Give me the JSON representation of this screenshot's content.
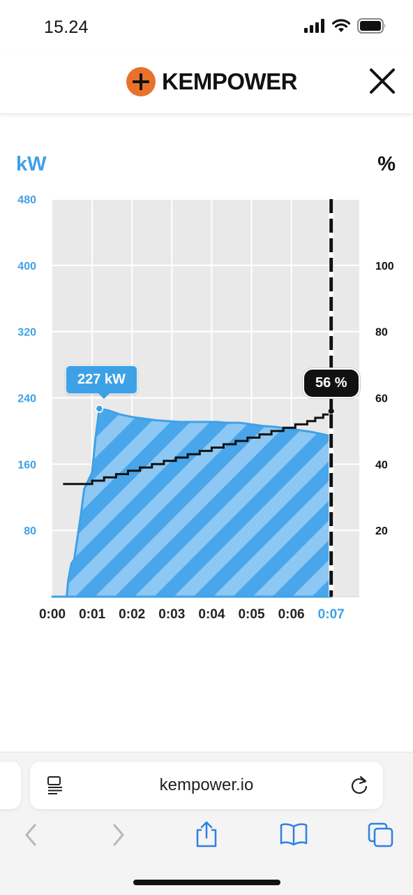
{
  "status_bar": {
    "time": "15.24",
    "icons": [
      "signal-icon",
      "wifi-icon",
      "battery-icon"
    ]
  },
  "header": {
    "brand": "KEMPOWER",
    "logo_icon": "kempower-plus-logo",
    "close_icon": "close-icon"
  },
  "chart": {
    "left_unit": "kW",
    "right_unit": "%",
    "tooltip_power": "227 kW",
    "tooltip_soc": "56 %"
  },
  "chart_data": {
    "type": "area",
    "x_labels": [
      "0:00",
      "0:01",
      "0:02",
      "0:03",
      "0:04",
      "0:05",
      "0:06",
      "0:07"
    ],
    "x_highlight": "0:07",
    "y_left_ticks": [
      "480",
      "400",
      "320",
      "240",
      "160",
      "80"
    ],
    "y_left_range": [
      0,
      480
    ],
    "y_right_ticks": [
      "100",
      "80",
      "60",
      "40",
      "20"
    ],
    "y_right_range": [
      0,
      120
    ],
    "grid": true,
    "colors": {
      "power": "#3ea1e6",
      "soc": "#111111",
      "left_axis": "#3ea1e6"
    },
    "series": [
      {
        "name": "kW",
        "unit": "kW",
        "points": [
          [
            0.0,
            0
          ],
          [
            0.36,
            0
          ],
          [
            0.4,
            20
          ],
          [
            0.48,
            40
          ],
          [
            0.55,
            45
          ],
          [
            0.72,
            100
          ],
          [
            0.8,
            130
          ],
          [
            1.0,
            150
          ],
          [
            1.08,
            190
          ],
          [
            1.18,
            227
          ],
          [
            1.4,
            225
          ],
          [
            1.7,
            220
          ],
          [
            2.0,
            217
          ],
          [
            2.3,
            215
          ],
          [
            2.6,
            213
          ],
          [
            2.9,
            212
          ],
          [
            3.2,
            211
          ],
          [
            3.5,
            211
          ],
          [
            3.8,
            211
          ],
          [
            4.1,
            211
          ],
          [
            4.4,
            210
          ],
          [
            4.7,
            210
          ],
          [
            5.0,
            208
          ],
          [
            5.3,
            206
          ],
          [
            5.6,
            205
          ],
          [
            5.9,
            203
          ],
          [
            6.2,
            201
          ],
          [
            6.5,
            199
          ],
          [
            6.8,
            196
          ],
          [
            6.97,
            194
          ],
          [
            7.0,
            0
          ]
        ]
      },
      {
        "name": "%",
        "unit": "%",
        "points": [
          [
            0.27,
            34
          ],
          [
            0.9,
            34
          ],
          [
            1.0,
            35
          ],
          [
            1.3,
            36
          ],
          [
            1.6,
            37
          ],
          [
            1.9,
            38
          ],
          [
            2.2,
            39
          ],
          [
            2.5,
            40
          ],
          [
            2.8,
            41
          ],
          [
            3.1,
            42
          ],
          [
            3.4,
            43
          ],
          [
            3.7,
            44
          ],
          [
            4.0,
            45
          ],
          [
            4.3,
            46
          ],
          [
            4.6,
            47
          ],
          [
            4.9,
            48
          ],
          [
            5.2,
            49
          ],
          [
            5.5,
            50
          ],
          [
            5.8,
            51
          ],
          [
            6.1,
            52
          ],
          [
            6.4,
            53
          ],
          [
            6.6,
            54
          ],
          [
            6.8,
            55
          ],
          [
            7.0,
            56
          ]
        ]
      }
    ],
    "marker": {
      "x": 7.0,
      "power_at_peak": 227,
      "soc": 56
    },
    "peak_point": {
      "x": 1.18,
      "y": 227
    }
  },
  "browser": {
    "url": "kempower.io",
    "reader_icon": "reader-icon",
    "reload_icon": "reload-icon",
    "nav": [
      "back-icon",
      "forward-icon",
      "share-icon",
      "bookmarks-icon",
      "tabs-icon"
    ]
  }
}
